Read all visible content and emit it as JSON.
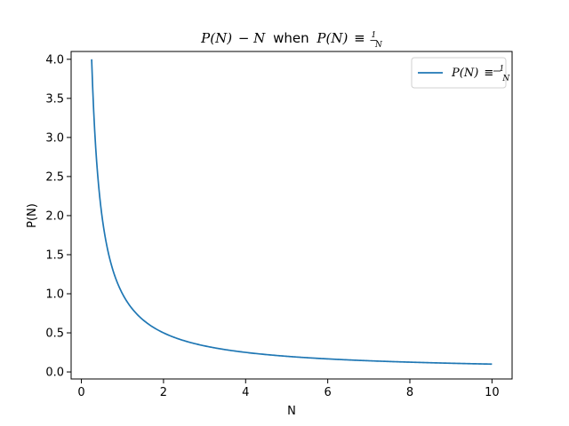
{
  "chart_data": {
    "type": "line",
    "title": {
      "lhs": "P(N)",
      "minus_term": "− N",
      "when": "when",
      "rhs_lhs": "P(N)",
      "equiv": "≡",
      "frac_num": "1",
      "frac_den": "N"
    },
    "xlabel": "N",
    "ylabel": "P(N)",
    "xlim": [
      -0.25,
      10.49
    ],
    "ylim": [
      -0.09,
      4.1
    ],
    "x_ticks": [
      0,
      2,
      4,
      6,
      8,
      10
    ],
    "x_tick_labels": [
      "0",
      "2",
      "4",
      "6",
      "8",
      "10"
    ],
    "y_ticks": [
      0,
      0.5,
      1,
      1.5,
      2,
      2.5,
      3,
      3.5,
      4
    ],
    "y_tick_labels": [
      "0.0",
      "0.5",
      "1.0",
      "1.5",
      "2.0",
      "2.5",
      "3.0",
      "3.5",
      "4.0"
    ],
    "grid": false,
    "legend_position": "top-right",
    "series": [
      {
        "name": "P(N) ≡ 1/N",
        "legend_lhs": "P(N)",
        "legend_equiv": "≡",
        "legend_num": "1",
        "legend_den": "N",
        "color": "#1f77b4",
        "function": "1/N",
        "x_range": [
          0.25,
          10
        ]
      }
    ]
  }
}
